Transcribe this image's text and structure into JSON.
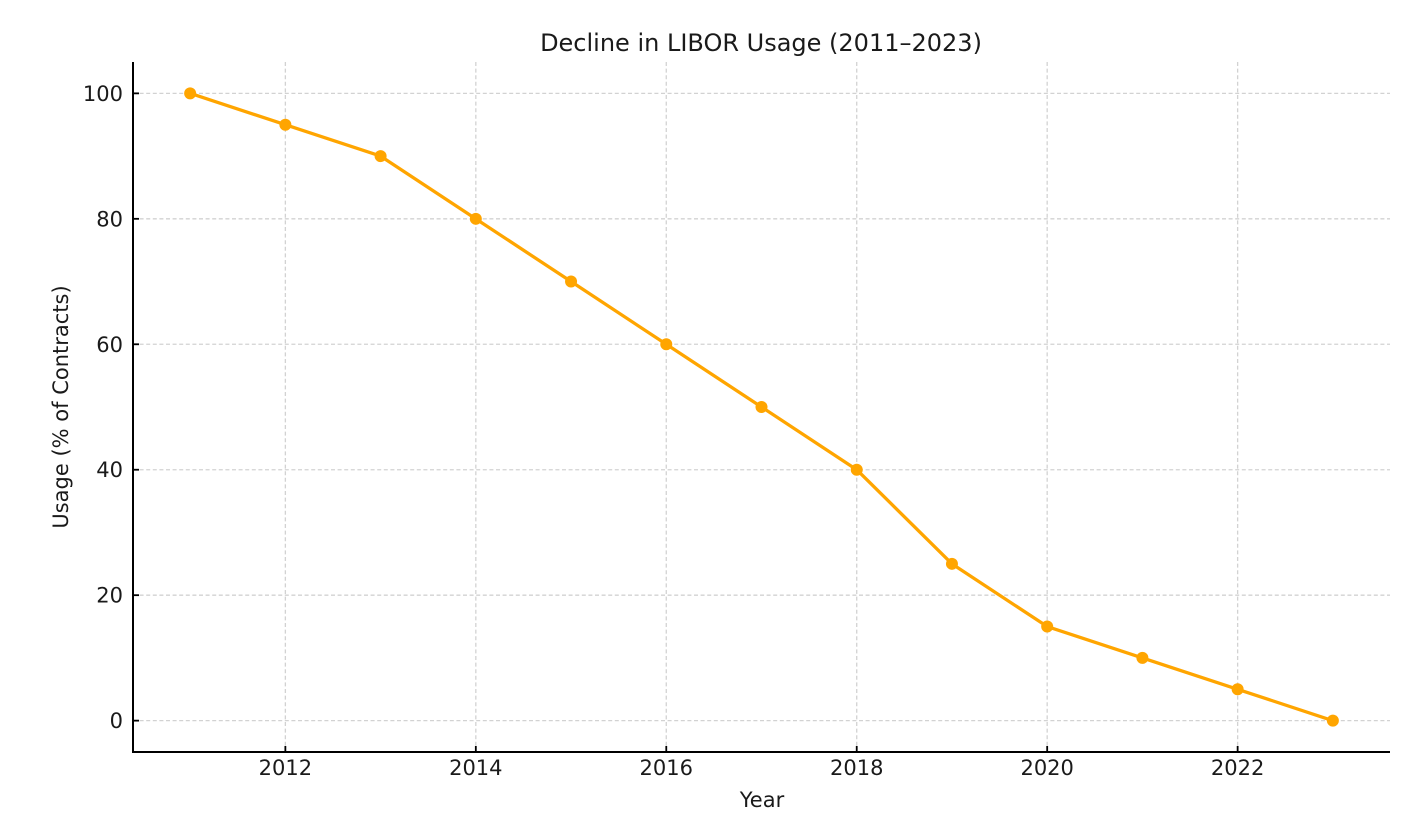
{
  "figure": {
    "background": "#ffffff"
  },
  "chart_data": {
    "type": "line",
    "title": "Decline in LIBOR Usage (2011–2023)",
    "xlabel": "Year",
    "ylabel": "Usage (% of Contracts)",
    "x": [
      2011,
      2012,
      2013,
      2014,
      2015,
      2016,
      2017,
      2018,
      2019,
      2020,
      2021,
      2022,
      2023
    ],
    "values": [
      100,
      95,
      90,
      80,
      70,
      60,
      50,
      40,
      25,
      15,
      10,
      5,
      0
    ],
    "xlim": [
      2010.4,
      2023.6
    ],
    "ylim": [
      -5,
      105
    ],
    "xticks": [
      2012,
      2014,
      2016,
      2018,
      2020,
      2022
    ],
    "yticks": [
      0,
      20,
      40,
      60,
      80,
      100
    ],
    "grid": true,
    "grid_style": "dashed",
    "legend_position": "none",
    "marker": "circle",
    "colors": {
      "line": "#FFA500",
      "marker": "#FFA500",
      "grid": "#d2d2d2",
      "axis": "#000000",
      "text": "#1a1a1a",
      "background": "#ffffff"
    }
  }
}
